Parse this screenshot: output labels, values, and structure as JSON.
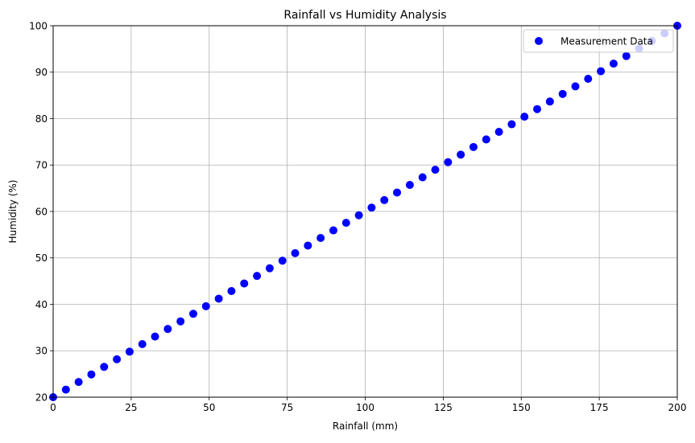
{
  "chart_data": {
    "type": "scatter",
    "title": "Rainfall vs Humidity Analysis",
    "xlabel": "Rainfall (mm)",
    "ylabel": "Humidity (%)",
    "xlim": [
      0,
      200
    ],
    "ylim": [
      20,
      100
    ],
    "xticks": [
      0,
      25,
      50,
      75,
      100,
      125,
      150,
      175,
      200
    ],
    "yticks": [
      20,
      30,
      40,
      50,
      60,
      70,
      80,
      90,
      100
    ],
    "grid": true,
    "legend": {
      "position": "upper-right"
    },
    "series": [
      {
        "name": "Measurement Data",
        "color": "#0000ff",
        "marker": "circle",
        "x": [
          0,
          4.08,
          8.16,
          12.24,
          16.33,
          20.41,
          24.49,
          28.57,
          32.65,
          36.73,
          40.82,
          44.9,
          48.98,
          53.06,
          57.14,
          61.22,
          65.31,
          69.39,
          73.47,
          77.55,
          81.63,
          85.71,
          89.8,
          93.88,
          97.96,
          102.04,
          106.12,
          110.2,
          114.29,
          118.37,
          122.45,
          126.53,
          130.61,
          134.69,
          138.78,
          142.86,
          146.94,
          151.02,
          155.1,
          159.18,
          163.27,
          167.35,
          171.43,
          175.51,
          179.59,
          183.67,
          187.76,
          191.84,
          195.92,
          200
        ],
        "y": [
          20,
          21.63,
          23.27,
          24.9,
          26.53,
          28.16,
          29.8,
          31.43,
          33.06,
          34.69,
          36.33,
          37.96,
          39.59,
          41.22,
          42.86,
          44.49,
          46.12,
          47.76,
          49.39,
          51.02,
          52.65,
          54.29,
          55.92,
          57.55,
          59.18,
          60.82,
          62.45,
          64.08,
          65.71,
          67.35,
          68.98,
          70.61,
          72.24,
          73.88,
          75.51,
          77.14,
          78.78,
          80.41,
          82.04,
          83.67,
          85.31,
          86.94,
          88.57,
          90.2,
          91.84,
          93.47,
          95.1,
          96.73,
          98.37,
          100
        ]
      }
    ]
  }
}
